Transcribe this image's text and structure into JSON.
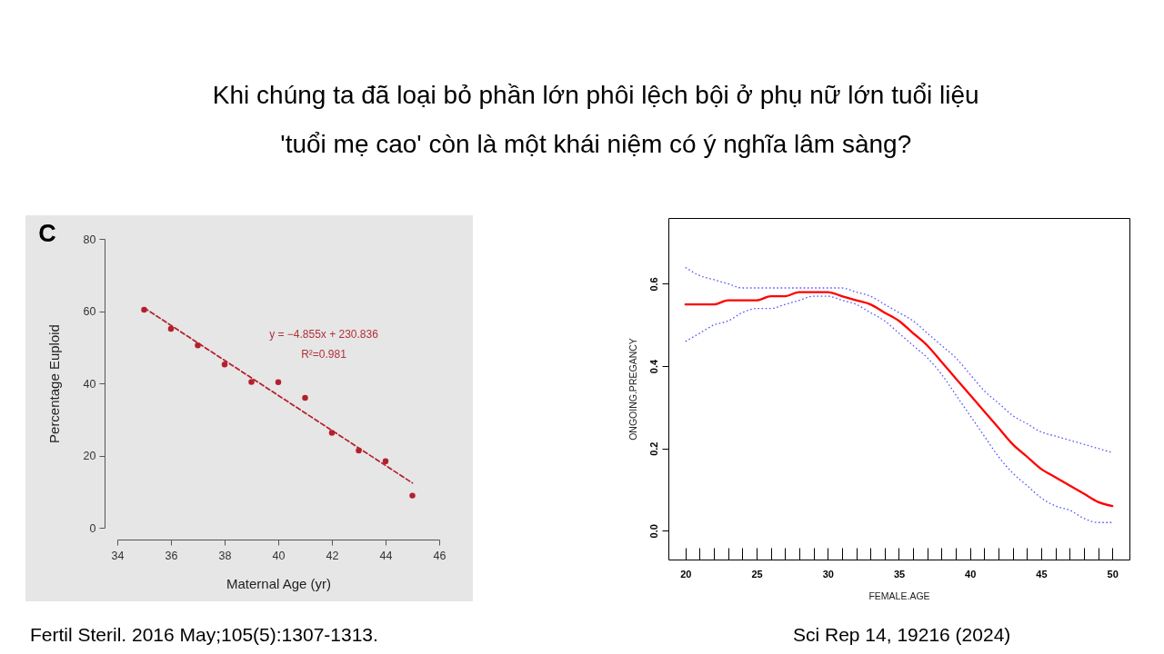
{
  "chart_data": [
    {
      "type": "scatter",
      "title": "Khi chúng ta đã loại bỏ phần lớn phôi lệch bội ở phụ nữ lớn tuổi liệu\n'tuổi mẹ cao' còn là một khái niệm có ý nghĩa lâm sàng?",
      "xlabel": "Maternal Age (yr)",
      "ylabel": "Percentage Euploid",
      "x": [
        35,
        36,
        37,
        38,
        39,
        40,
        41,
        42,
        43,
        44,
        45
      ],
      "series": [
        {
          "color": "#b3202c",
          "marker": "circle",
          "values": [
            60.4,
            55.1,
            50.5,
            45.2,
            40.4,
            40.3,
            36.0,
            26.3,
            21.4,
            18.4,
            8.9
          ]
        },
        {
          "type": "line",
          "x": [
            35,
            45
          ],
          "values": [
            60.9,
            12.4
          ],
          "color": "#b3202c",
          "line_style": "dashed"
        }
      ],
      "xlim": [
        34,
        46
      ],
      "xticks": [
        34,
        36,
        38,
        40,
        42,
        44,
        46
      ],
      "ylim": [
        0,
        80
      ],
      "yticks": [
        0,
        20,
        40,
        60,
        80
      ],
      "grid": false,
      "annotations": [
        "C",
        "y = −4.855x + 230.836",
        "R²=0.981",
        "Fertil Steril. 2016 May;105(5):1307-1313."
      ]
    },
    {
      "type": "line",
      "xlabel": "FEMALE.AGE",
      "ylabel": "ONGOING.PREGANCY",
      "x": [
        20,
        21,
        22,
        23,
        24,
        25,
        26,
        27,
        28,
        29,
        30,
        31,
        32,
        33,
        34,
        35,
        36,
        37,
        38,
        39,
        40,
        41,
        42,
        43,
        44,
        45,
        46,
        47,
        48,
        49,
        50
      ],
      "series": [
        {
          "color": "#ff0000",
          "line_style": "solid",
          "values": [
            0.55,
            0.55,
            0.55,
            0.56,
            0.56,
            0.56,
            0.57,
            0.57,
            0.58,
            0.58,
            0.58,
            0.57,
            0.56,
            0.55,
            0.53,
            0.51,
            0.48,
            0.45,
            0.41,
            0.37,
            0.33,
            0.29,
            0.25,
            0.21,
            0.18,
            0.15,
            0.13,
            0.11,
            0.09,
            0.07,
            0.06
          ]
        },
        {
          "color": "#5555ff",
          "line_style": "dotted",
          "values": [
            0.64,
            0.62,
            0.61,
            0.6,
            0.59,
            0.59,
            0.59,
            0.59,
            0.59,
            0.59,
            0.59,
            0.59,
            0.58,
            0.57,
            0.55,
            0.53,
            0.51,
            0.48,
            0.45,
            0.42,
            0.38,
            0.34,
            0.31,
            0.28,
            0.26,
            0.24,
            0.23,
            0.22,
            0.21,
            0.2,
            0.19
          ]
        },
        {
          "color": "#5555ff",
          "line_style": "dotted",
          "values": [
            0.46,
            0.48,
            0.5,
            0.51,
            0.53,
            0.54,
            0.54,
            0.55,
            0.56,
            0.57,
            0.57,
            0.56,
            0.55,
            0.53,
            0.51,
            0.48,
            0.45,
            0.42,
            0.38,
            0.33,
            0.28,
            0.23,
            0.18,
            0.14,
            0.11,
            0.08,
            0.06,
            0.05,
            0.03,
            0.02,
            0.02
          ]
        }
      ],
      "xlim": [
        18.8,
        51.2
      ],
      "xticks": [
        20,
        {
          "value": 21,
          "label": null
        },
        {
          "value": 22,
          "label": null
        },
        {
          "value": 23,
          "label": null
        },
        {
          "value": 24,
          "label": null
        },
        25,
        {
          "value": 26,
          "label": null
        },
        {
          "value": 27,
          "label": null
        },
        {
          "value": 28,
          "label": null
        },
        {
          "value": 29,
          "label": null
        },
        30,
        {
          "value": 31,
          "label": null
        },
        {
          "value": 32,
          "label": null
        },
        {
          "value": 33,
          "label": null
        },
        {
          "value": 34,
          "label": null
        },
        35,
        {
          "value": 36,
          "label": null
        },
        {
          "value": 37,
          "label": null
        },
        {
          "value": 38,
          "label": null
        },
        {
          "value": 39,
          "label": null
        },
        40,
        {
          "value": 41,
          "label": null
        },
        {
          "value": 42,
          "label": null
        },
        {
          "value": 43,
          "label": null
        },
        {
          "value": 44,
          "label": null
        },
        45,
        {
          "value": 46,
          "label": null
        },
        {
          "value": 47,
          "label": null
        },
        {
          "value": 48,
          "label": null
        },
        {
          "value": 49,
          "label": null
        },
        50
      ],
      "ylim": [
        -0.07,
        0.76
      ],
      "yticks": [
        {
          "value": 0,
          "label": "0.0"
        },
        0.2,
        0.4,
        0.6
      ],
      "grid": false,
      "annotations": [
        "Sci Rep 14, 19216 (2024)"
      ]
    }
  ]
}
